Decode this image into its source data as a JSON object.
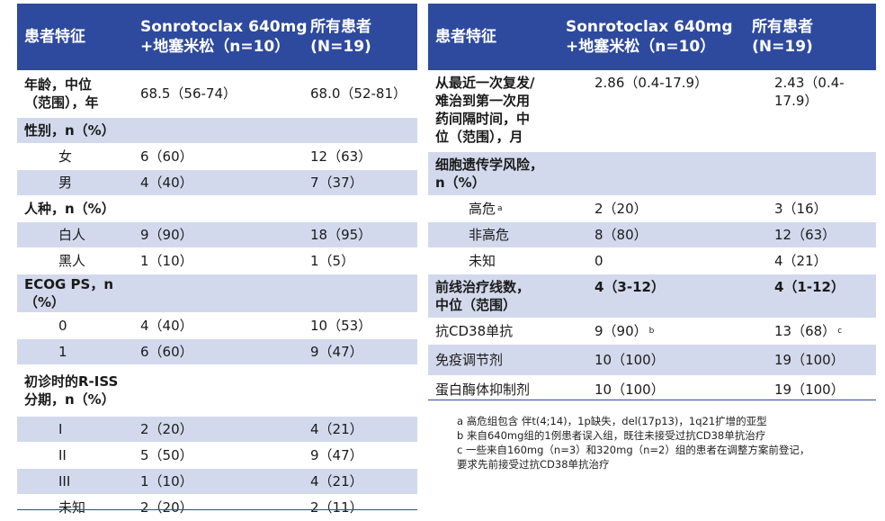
{
  "left_table": {
    "headers": [
      "患者特征",
      "Sonrotoclax 640mg\n+地塞米松（n=10）",
      "所有患者\n(N=19)"
    ],
    "rows": [
      {
        "label": "年龄，中位\n（范围），年",
        "c1": "68.5（56-74）",
        "c2": "68.0（52-81）",
        "style": "white",
        "bold": true
      },
      {
        "label": "性别，n（%）",
        "c1": "",
        "c2": "",
        "style": "band",
        "bold": true
      },
      {
        "label": "女",
        "c1": "6（60）",
        "c2": "12（63）",
        "style": "white",
        "indent": true
      },
      {
        "label": "男",
        "c1": "4（40）",
        "c2": "7（37）",
        "style": "band",
        "indent": true
      },
      {
        "label": "人种，n（%）",
        "c1": "",
        "c2": "",
        "style": "white",
        "bold": true
      },
      {
        "label": "白人",
        "c1": "9（90）",
        "c2": "18（95）",
        "style": "band",
        "indent": true
      },
      {
        "label": "黑人",
        "c1": "1（10）",
        "c2": "1（5）",
        "style": "white",
        "indent": true
      },
      {
        "label": "ECOG PS，n\n（%）",
        "c1": "",
        "c2": "",
        "style": "band",
        "bold": true
      },
      {
        "label": "0",
        "c1": "4（40）",
        "c2": "10（53）",
        "style": "white",
        "indent": true
      },
      {
        "label": "1",
        "c1": "6（60）",
        "c2": "9（47）",
        "style": "band",
        "indent": true
      },
      {
        "label": "初诊时的R-ISS\n分期，n（%）",
        "c1": "",
        "c2": "",
        "style": "white",
        "bold": true
      },
      {
        "label": "I",
        "c1": "2（20）",
        "c2": "4（21）",
        "style": "band",
        "indent": true
      },
      {
        "label": "II",
        "c1": "5（50）",
        "c2": "9（47）",
        "style": "white",
        "indent": true
      },
      {
        "label": "III",
        "c1": "1（10）",
        "c2": "4（21）",
        "style": "band",
        "indent": true
      },
      {
        "label": "未知",
        "c1": "2（20）",
        "c2": "2（11）",
        "style": "white",
        "indent": true
      }
    ]
  },
  "right_table": {
    "headers": [
      "患者特征",
      "Sonrotoclax 640mg\n+地塞米松（n=10）",
      "所有患者\n(N=19)"
    ],
    "rows": [
      {
        "label": "从最近一次复发/\n难治到第一次用\n药间隔时间，中\n位（范围），月",
        "c1": "2.86（0.4-17.9）",
        "c2": "2.43（0.4-17.9）",
        "style": "white",
        "bold": true,
        "valign_top": true
      },
      {
        "label": "细胞遗传学风险，\nn（%）",
        "c1": "",
        "c2": "",
        "style": "band",
        "bold": true
      },
      {
        "label": "高危",
        "label_sup": "a",
        "c1": "2（20）",
        "c2": "3（16）",
        "style": "white",
        "indent": true
      },
      {
        "label": "非高危",
        "c1": "8（80）",
        "c2": "12（63）",
        "style": "band",
        "indent": true
      },
      {
        "label": "未知",
        "c1": "0",
        "c2": "4（21）",
        "style": "white",
        "indent": true
      },
      {
        "label": "前线治疗线数，\n中位（范围）",
        "c1": "4（3-12）",
        "c2": "4（1-12）",
        "style": "band",
        "bold": true,
        "bold_values": true,
        "valign_top": true
      },
      {
        "label": "抗CD38单抗",
        "c1": "9（90）",
        "c1_sup": "b",
        "c2": "13（68）",
        "c2_sup": "c",
        "style": "white"
      },
      {
        "label": "免疫调节剂",
        "c1": "10（100）",
        "c2": "19（100）",
        "style": "band"
      },
      {
        "label": "蛋白酶体抑制剂",
        "c1": "10（100）",
        "c2": "19（100）",
        "style": "white"
      }
    ]
  },
  "footnotes": [
    "a 高危组包含 伴t(4;14)，1p缺失，del(17p13)，1q21扩增的亚型",
    "b 来自640mg组的1例患者误入组，既往未接受过抗CD38单抗治疗",
    "c 一些来自160mg（n=3）和320mg（n=2）组的患者在调整方案前登记，",
    "要求先前接受过抗CD38单抗治疗"
  ],
  "colors": {
    "header": "#2e4a9e",
    "band": "#d3d9ec",
    "rule": "#2e4a9e"
  }
}
